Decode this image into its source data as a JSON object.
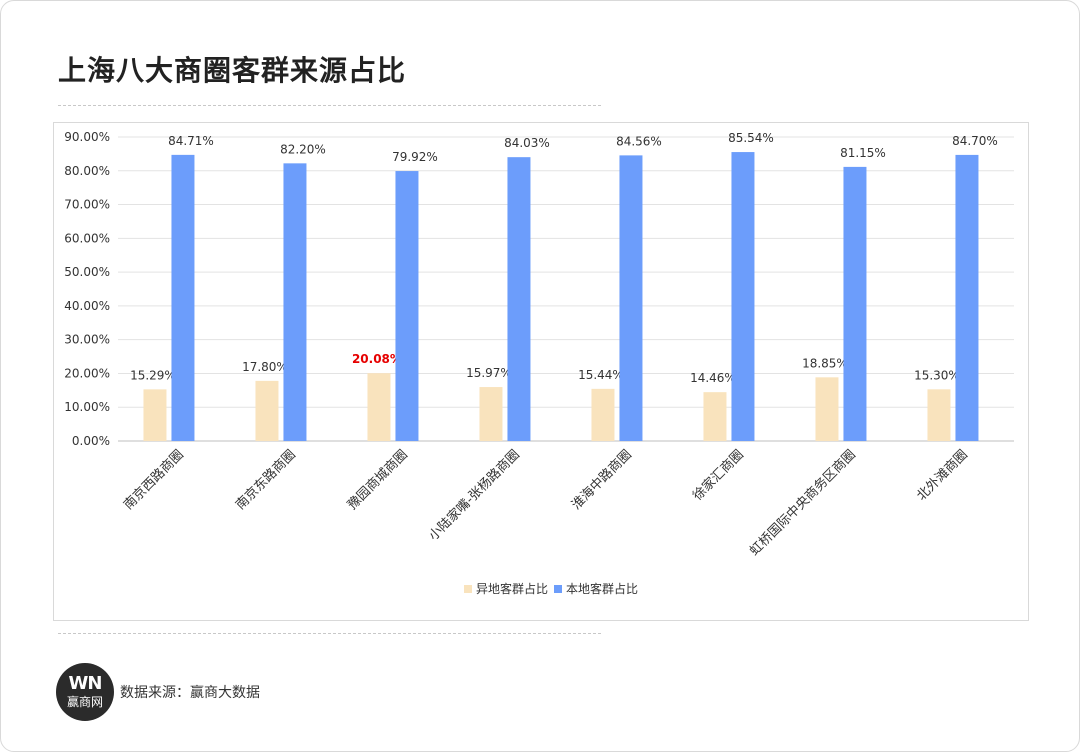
{
  "header": {
    "title": "上海八大商圈客群来源占比"
  },
  "footer": {
    "logo_mark": "WN",
    "logo_text": "赢商网",
    "source": "数据来源：赢商大数据"
  },
  "chart_data": {
    "type": "bar",
    "title": "",
    "xlabel": "",
    "ylabel": "",
    "ylim": [
      0,
      90
    ],
    "yticks": [
      "0.00%",
      "10.00%",
      "20.00%",
      "30.00%",
      "40.00%",
      "50.00%",
      "60.00%",
      "70.00%",
      "80.00%",
      "90.00%"
    ],
    "categories": [
      "南京西路商圈",
      "南京东路商圈",
      "豫园商城商圈",
      "小陆家嘴-张杨路商圈",
      "淮海中路商圈",
      "徐家汇商圈",
      "虹桥国际中央商务区商圈",
      "北外滩商圈"
    ],
    "series": [
      {
        "name": "异地客群占比",
        "color": "#f9e3bd",
        "values": [
          15.29,
          17.8,
          20.08,
          15.97,
          15.44,
          14.46,
          18.85,
          15.3
        ],
        "labels": [
          "15.29%",
          "17.80%",
          "20.08%",
          "15.97%",
          "15.44%",
          "14.46%",
          "18.85%",
          "15.30%"
        ]
      },
      {
        "name": "本地客群占比",
        "color": "#6c9dfb",
        "values": [
          84.71,
          82.2,
          79.92,
          84.03,
          84.56,
          85.54,
          81.15,
          84.7
        ],
        "labels": [
          "84.71%",
          "82.20%",
          "79.92%",
          "84.03%",
          "84.56%",
          "85.54%",
          "81.15%",
          "84.70%"
        ]
      }
    ],
    "highlight": {
      "series": 0,
      "index": 2,
      "color": "#e60000"
    },
    "grid": true,
    "legend_position": "bottom"
  }
}
